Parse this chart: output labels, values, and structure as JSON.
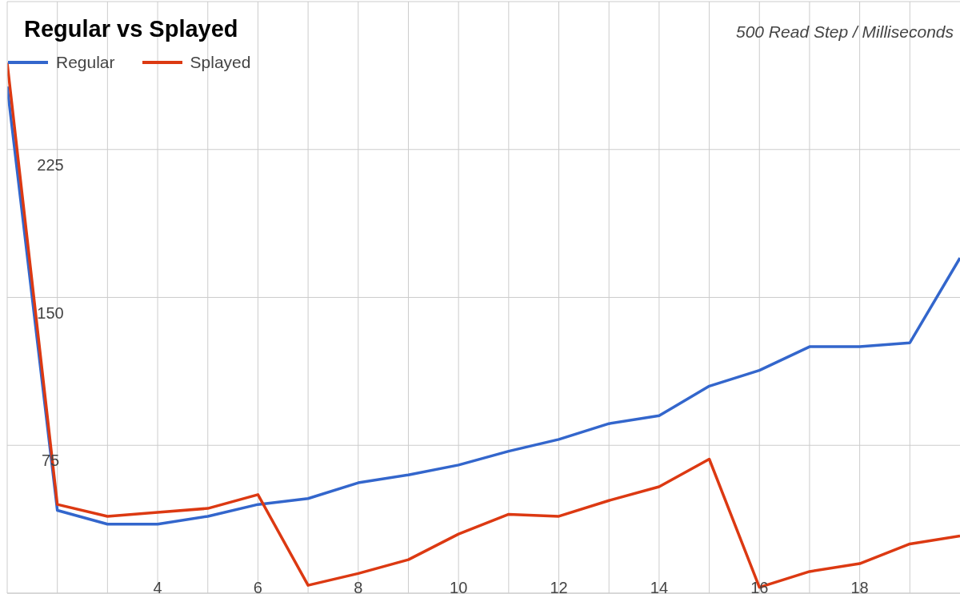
{
  "chart_data": {
    "type": "line",
    "title": "Regular vs Splayed",
    "subtitle": "500 Read Step / Milliseconds",
    "x": [
      1,
      2,
      3,
      4,
      5,
      6,
      7,
      8,
      9,
      10,
      11,
      12,
      13,
      14,
      15,
      16,
      17,
      18,
      19,
      20
    ],
    "series": [
      {
        "name": "Regular",
        "color": "#3366cc",
        "values": [
          257,
          42,
          35,
          35,
          39,
          45,
          48,
          56,
          60,
          65,
          72,
          78,
          86,
          90,
          105,
          113,
          125,
          125,
          127,
          170
        ]
      },
      {
        "name": "Splayed",
        "color": "#dc3912",
        "values": [
          269,
          45,
          39,
          41,
          43,
          50,
          4,
          10,
          17,
          30,
          40,
          39,
          47,
          54,
          68,
          3,
          11,
          15,
          25,
          29
        ]
      }
    ],
    "xlim": [
      1,
      20
    ],
    "xticks": [
      {
        "value": 2,
        "label": null
      },
      {
        "value": 3,
        "label": null
      },
      4,
      {
        "value": 5,
        "label": null
      },
      6,
      {
        "value": 7,
        "label": null
      },
      8,
      {
        "value": 9,
        "label": null
      },
      10,
      {
        "value": 11,
        "label": null
      },
      12,
      {
        "value": 13,
        "label": null
      },
      14,
      {
        "value": 15,
        "label": null
      },
      16,
      {
        "value": 17,
        "label": null
      },
      18,
      {
        "value": 19,
        "label": null
      }
    ],
    "ylim": [
      0,
      300
    ],
    "yticks": [
      {
        "value": 0,
        "label": null
      },
      75,
      150,
      225,
      {
        "value": 300,
        "label": null
      }
    ],
    "grid": true,
    "legend": "top left",
    "marker": "none",
    "line_style": "solid"
  }
}
